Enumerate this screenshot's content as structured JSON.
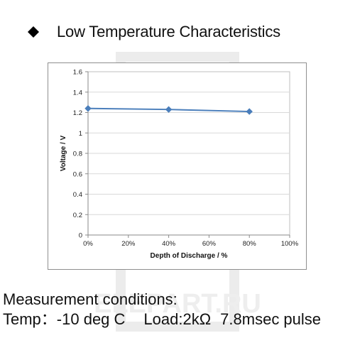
{
  "heading": {
    "bullet_icon": "diamond-icon",
    "title": "Low Temperature Characteristics"
  },
  "chart_data": {
    "type": "line",
    "title": "",
    "xlabel": "Depth of Discharge / %",
    "ylabel": "Voltage  /  V",
    "xlim": [
      0,
      100
    ],
    "ylim": [
      0,
      1.6
    ],
    "x_ticks": [
      "0%",
      "20%",
      "40%",
      "60%",
      "80%",
      "100%"
    ],
    "y_ticks": [
      "0",
      "0.2",
      "0.4",
      "0.6",
      "0.8",
      "1",
      "1.2",
      "1.4",
      "1.6"
    ],
    "grid": "horizontal",
    "legend": "none",
    "series": [
      {
        "x": [
          0,
          40,
          80
        ],
        "y": [
          1.24,
          1.23,
          1.21
        ],
        "color": "#4a7ebb",
        "marker": "diamond"
      }
    ]
  },
  "measurement": {
    "heading": "Measurement conditions:",
    "temp": "Temp：-10 deg C",
    "load": "Load:2kΩ",
    "pulse": "7.8msec pulse"
  },
  "watermark": {
    "text": "ELEPART.RU",
    "color": "#e9e9e9"
  }
}
